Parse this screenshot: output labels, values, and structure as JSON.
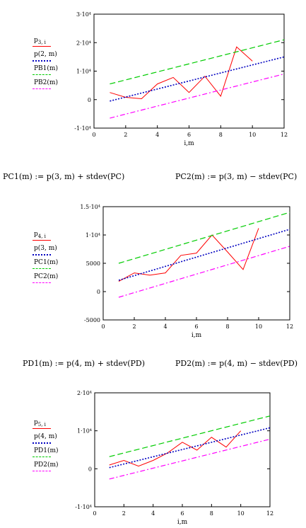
{
  "plots": [
    {
      "id": "plot1",
      "xlabel": "i,m",
      "ylabels": [
        "3·10⁴",
        "2·10⁴",
        "1·10⁴",
        "0",
        "-1·10⁴"
      ],
      "xticks": [
        "0",
        "2",
        "4",
        "6",
        "8",
        "10",
        "12"
      ],
      "legend": [
        {
          "main": "p",
          "sub": "3, i",
          "color": "#ff0000",
          "dash": "solid"
        },
        {
          "main": "p(2, m)",
          "sub": "",
          "color": "#0000c0",
          "dash": "dotted"
        },
        {
          "main": "PB1(m)",
          "sub": "",
          "color": "#00cc00",
          "dash": "dashed"
        },
        {
          "main": "PB2(m)",
          "sub": "",
          "color": "#ff00ff",
          "dash": "dashdot"
        }
      ]
    },
    {
      "id": "plot2",
      "xlabel": "i,m",
      "ylabels": [
        "1.5·10⁴",
        "1·10⁴",
        "5000",
        "0",
        "-5000"
      ],
      "xticks": [
        "0",
        "2",
        "4",
        "6",
        "8",
        "10",
        "12"
      ],
      "legend": [
        {
          "main": "p",
          "sub": "4, i",
          "color": "#ff0000",
          "dash": "solid"
        },
        {
          "main": "p(3, m)",
          "sub": "",
          "color": "#0000c0",
          "dash": "dotted"
        },
        {
          "main": "PC1(m)",
          "sub": "",
          "color": "#00cc00",
          "dash": "dashed"
        },
        {
          "main": "PC2(m)",
          "sub": "",
          "color": "#ff00ff",
          "dash": "dashdot"
        }
      ]
    },
    {
      "id": "plot3",
      "xlabel": "i,m",
      "ylabels": [
        "2·10⁴",
        "1·10⁴",
        "0",
        "-1·10⁴"
      ],
      "xticks": [
        "0",
        "2",
        "4",
        "6",
        "8",
        "10",
        "12"
      ],
      "legend": [
        {
          "main": "p",
          "sub": "5, i",
          "color": "#ff0000",
          "dash": "solid"
        },
        {
          "main": "p(4, m)",
          "sub": "",
          "color": "#0000c0",
          "dash": "dotted"
        },
        {
          "main": "PD1(m)",
          "sub": "",
          "color": "#00cc00",
          "dash": "dashed"
        },
        {
          "main": "PD2(m)",
          "sub": "",
          "color": "#ff00ff",
          "dash": "dashdot"
        }
      ]
    }
  ],
  "formulas": {
    "pc1": "PC1(m) := p(3, m) + stdev(PC)",
    "pc2": "PC2(m) := p(3, m) − stdev(PC)",
    "pd1": "PD1(m) := p(4, m) + stdev(PD)",
    "pd2": "PD2(m) := p(4, m) − stdev(PD)"
  },
  "chart_data": [
    {
      "type": "line",
      "xlim": [
        0,
        12
      ],
      "ylim": [
        -10000,
        30000
      ],
      "xlabel": "i,m",
      "series": [
        {
          "name": "p3,i",
          "x": [
            1,
            2,
            3,
            4,
            5,
            6,
            7,
            8,
            9,
            10
          ],
          "y": [
            2500,
            800,
            300,
            5500,
            7800,
            2500,
            8200,
            1200,
            18500,
            13500
          ]
        },
        {
          "name": "p(2,m)",
          "x": [
            1,
            12
          ],
          "y": [
            -500,
            15000
          ]
        },
        {
          "name": "PB1(m)",
          "x": [
            1,
            12
          ],
          "y": [
            5500,
            21000
          ]
        },
        {
          "name": "PB2(m)",
          "x": [
            1,
            12
          ],
          "y": [
            -6500,
            9000
          ]
        }
      ]
    },
    {
      "type": "line",
      "xlim": [
        0,
        12
      ],
      "ylim": [
        -5000,
        15000
      ],
      "xlabel": "i,m",
      "series": [
        {
          "name": "p4,i",
          "x": [
            1,
            2,
            3,
            4,
            5,
            6,
            7,
            8,
            9,
            10
          ],
          "y": [
            1800,
            3300,
            2900,
            3300,
            6400,
            6800,
            10000,
            7000,
            3900,
            11200
          ]
        },
        {
          "name": "p(3,m)",
          "x": [
            1,
            12
          ],
          "y": [
            2000,
            11000
          ]
        },
        {
          "name": "PC1(m)",
          "x": [
            1,
            12
          ],
          "y": [
            5000,
            14000
          ]
        },
        {
          "name": "PC2(m)",
          "x": [
            1,
            12
          ],
          "y": [
            -1000,
            8000
          ]
        }
      ]
    },
    {
      "type": "line",
      "xlim": [
        0,
        12
      ],
      "ylim": [
        -10000,
        20000
      ],
      "xlabel": "i,m",
      "series": [
        {
          "name": "p5,i",
          "x": [
            1,
            2,
            3,
            4,
            5,
            6,
            7,
            8,
            9,
            10
          ],
          "y": [
            1000,
            2200,
            700,
            2200,
            4200,
            7000,
            4900,
            8300,
            5700,
            10000
          ]
        },
        {
          "name": "p(4,m)",
          "x": [
            1,
            12
          ],
          "y": [
            300,
            10800
          ]
        },
        {
          "name": "PD1(m)",
          "x": [
            1,
            12
          ],
          "y": [
            3200,
            13900
          ]
        },
        {
          "name": "PD2(m)",
          "x": [
            1,
            12
          ],
          "y": [
            -2700,
            7800
          ]
        }
      ]
    }
  ]
}
